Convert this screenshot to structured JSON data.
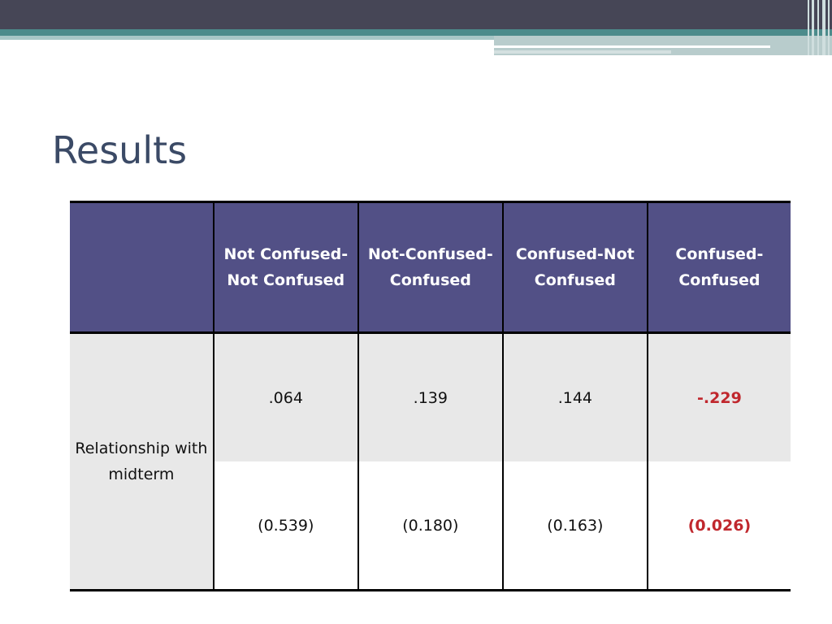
{
  "title": "Results",
  "table": {
    "headers": [
      "",
      "Not Confused-Not Confused",
      "Not-Confused-Confused",
      "Confused-Not Confused",
      "Confused-Confused"
    ],
    "row_label": "Relationship with midterm",
    "coefficients": [
      ".064",
      ".139",
      ".144",
      "-.229"
    ],
    "p_values": [
      "(0.539)",
      "(0.180)",
      "(0.163)",
      "(0.026)"
    ]
  },
  "colors": {
    "header_bg": "#525086",
    "highlight": "#c0272d",
    "title": "#3b4a66"
  }
}
